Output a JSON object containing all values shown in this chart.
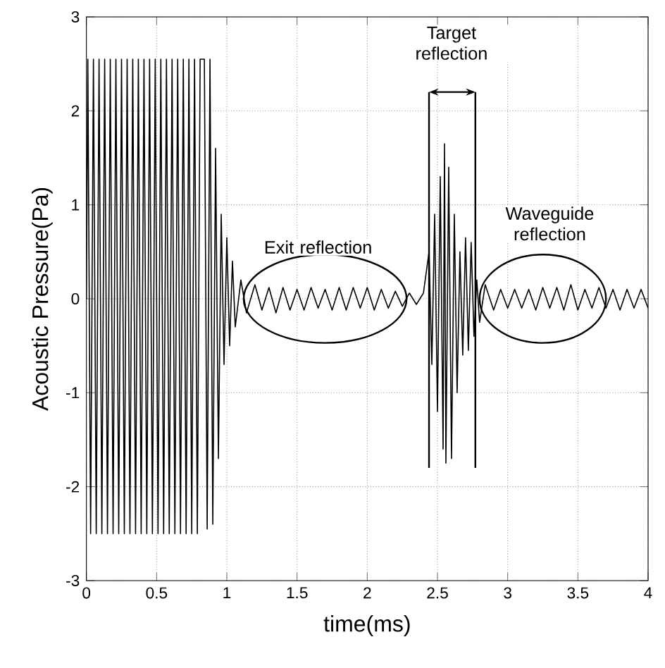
{
  "chart_data": {
    "type": "line",
    "xlabel": "time(ms)",
    "ylabel": "Acoustic Pressure(Pa)",
    "xlim": [
      0,
      4
    ],
    "ylim": [
      -3,
      3
    ],
    "xticks": [
      0,
      0.5,
      1,
      1.5,
      2,
      2.5,
      3,
      3.5,
      4
    ],
    "yticks": [
      -3,
      -2,
      -1,
      0,
      1,
      2,
      3
    ],
    "grid": true,
    "annotations": [
      "Exit reflection",
      "Target reflection",
      "Waveguide reflection"
    ],
    "series": [
      {
        "color": "#000000",
        "x": [
          0,
          0.01,
          0.03,
          0.05,
          0.07,
          0.09,
          0.11,
          0.13,
          0.15,
          0.17,
          0.19,
          0.21,
          0.23,
          0.25,
          0.27,
          0.29,
          0.31,
          0.33,
          0.35,
          0.37,
          0.39,
          0.41,
          0.43,
          0.45,
          0.47,
          0.49,
          0.51,
          0.53,
          0.55,
          0.57,
          0.59,
          0.61,
          0.63,
          0.65,
          0.67,
          0.69,
          0.71,
          0.73,
          0.75,
          0.77,
          0.79,
          0.81,
          0.84,
          0.86,
          0.88,
          0.9,
          0.92,
          0.94,
          0.96,
          0.98,
          1.0,
          1.02,
          1.04,
          1.06,
          1.1,
          1.14,
          1.2,
          1.25,
          1.3,
          1.35,
          1.4,
          1.45,
          1.5,
          1.55,
          1.6,
          1.65,
          1.7,
          1.75,
          1.8,
          1.85,
          1.9,
          1.95,
          2.0,
          2.05,
          2.1,
          2.15,
          2.2,
          2.25,
          2.3,
          2.35,
          2.4,
          2.44,
          2.46,
          2.48,
          2.5,
          2.52,
          2.54,
          2.55,
          2.56,
          2.58,
          2.6,
          2.62,
          2.64,
          2.66,
          2.68,
          2.7,
          2.72,
          2.74,
          2.76,
          2.78,
          2.8,
          2.84,
          2.9,
          2.95,
          3.0,
          3.05,
          3.1,
          3.15,
          3.2,
          3.25,
          3.3,
          3.35,
          3.4,
          3.45,
          3.5,
          3.55,
          3.6,
          3.65,
          3.7,
          3.75,
          3.8,
          3.85,
          3.9,
          3.95,
          4.0
        ],
        "values": [
          0,
          2.55,
          -2.5,
          2.55,
          -2.5,
          2.55,
          -2.5,
          2.55,
          -2.5,
          2.55,
          -2.5,
          2.55,
          -2.5,
          2.55,
          -2.5,
          2.55,
          -2.5,
          2.55,
          -2.5,
          2.55,
          -2.5,
          2.55,
          -2.5,
          2.55,
          -2.5,
          2.55,
          -2.5,
          2.55,
          -2.5,
          2.55,
          -2.5,
          2.55,
          -2.5,
          2.55,
          -2.5,
          2.55,
          -2.5,
          2.55,
          -2.5,
          2.55,
          -2.5,
          2.55,
          2.55,
          -2.45,
          2.55,
          -2.4,
          1.6,
          -1.7,
          0.9,
          -0.7,
          0.65,
          -0.5,
          0.4,
          -0.3,
          0.2,
          -0.15,
          0.15,
          -0.12,
          0.12,
          -0.15,
          0.12,
          -0.12,
          0.1,
          -0.12,
          0.12,
          -0.1,
          0.1,
          -0.12,
          0.12,
          -0.12,
          0.12,
          -0.1,
          0.12,
          -0.12,
          0.1,
          -0.1,
          0.08,
          -0.08,
          0.06,
          -0.06,
          0.06,
          0.5,
          -0.7,
          0.9,
          -1.2,
          1.3,
          -1.6,
          1.65,
          -1.75,
          1.4,
          -1.7,
          0.9,
          -1.0,
          0.5,
          -0.6,
          0.65,
          -0.55,
          0.6,
          -0.4,
          0.2,
          -0.25,
          0.15,
          -0.12,
          0.1,
          -0.1,
          0.1,
          -0.1,
          0.1,
          -0.12,
          0.12,
          -0.1,
          0.12,
          -0.12,
          0.15,
          -0.12,
          0.1,
          -0.1,
          0.12,
          -0.1,
          0.1,
          -0.12,
          0.1,
          -0.1,
          0.1,
          -0.1
        ]
      }
    ]
  }
}
